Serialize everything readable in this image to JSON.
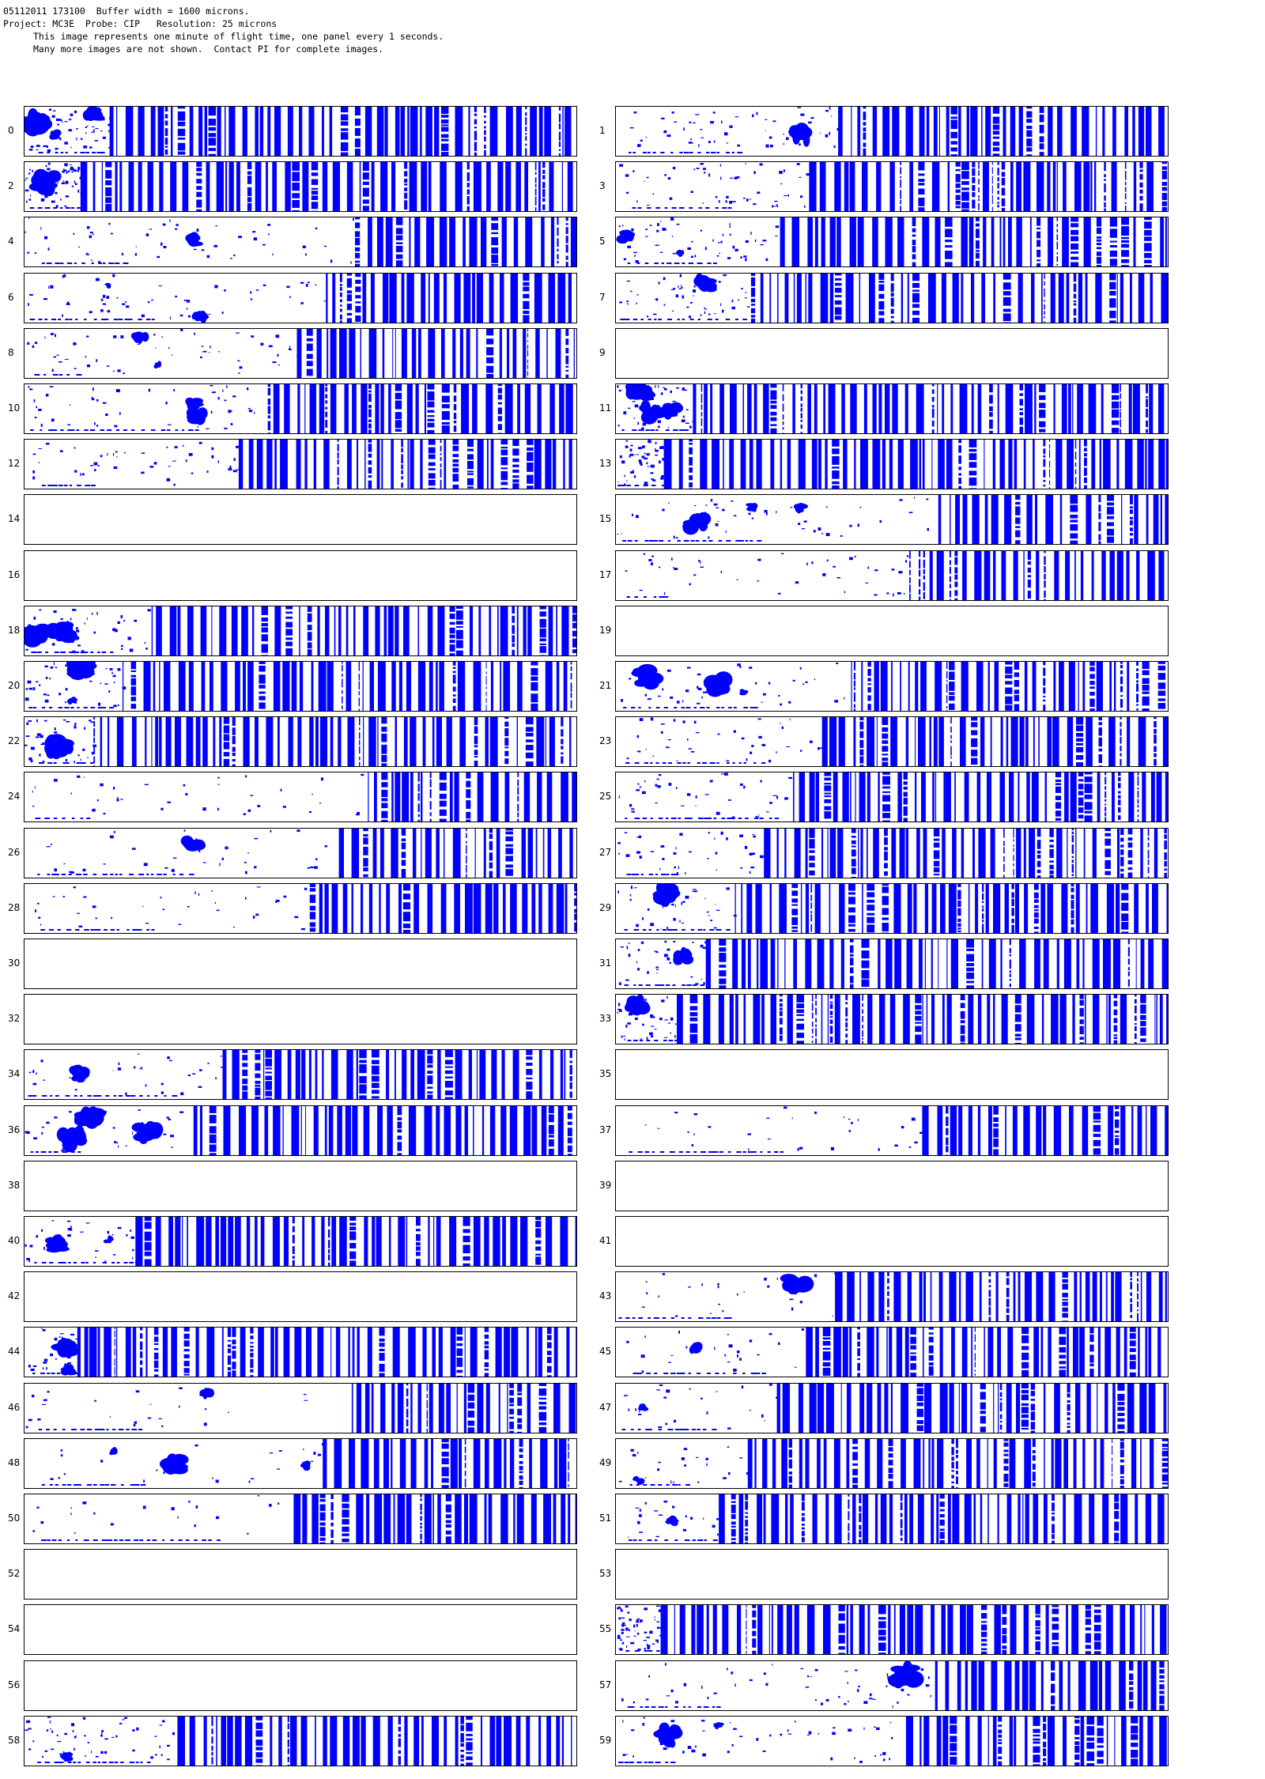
{
  "header": {
    "line1": "05112011 173100  Buffer width = 1600 microns.",
    "line2": "Project: MC3E  Probe: CIP   Resolution: 25 microns",
    "line3": "This image represents one minute of flight time, one panel every 1 seconds.",
    "line4": "Many more images are not shown.  Contact PI for complete images."
  },
  "colors": {
    "particle": "#0000ff",
    "border": "#000000",
    "background": "#ffffff"
  },
  "panels": [
    {
      "label": "0",
      "empty": false
    },
    {
      "label": "1",
      "empty": false
    },
    {
      "label": "2",
      "empty": false
    },
    {
      "label": "3",
      "empty": false
    },
    {
      "label": "4",
      "empty": false
    },
    {
      "label": "5",
      "empty": false
    },
    {
      "label": "6",
      "empty": false
    },
    {
      "label": "7",
      "empty": false
    },
    {
      "label": "8",
      "empty": false
    },
    {
      "label": "9",
      "empty": true
    },
    {
      "label": "10",
      "empty": false
    },
    {
      "label": "11",
      "empty": false
    },
    {
      "label": "12",
      "empty": false
    },
    {
      "label": "13",
      "empty": false
    },
    {
      "label": "14",
      "empty": true
    },
    {
      "label": "15",
      "empty": false
    },
    {
      "label": "16",
      "empty": true
    },
    {
      "label": "17",
      "empty": false
    },
    {
      "label": "18",
      "empty": false
    },
    {
      "label": "19",
      "empty": true
    },
    {
      "label": "20",
      "empty": false
    },
    {
      "label": "21",
      "empty": false
    },
    {
      "label": "22",
      "empty": false
    },
    {
      "label": "23",
      "empty": false
    },
    {
      "label": "24",
      "empty": false
    },
    {
      "label": "25",
      "empty": false
    },
    {
      "label": "26",
      "empty": false
    },
    {
      "label": "27",
      "empty": false
    },
    {
      "label": "28",
      "empty": false
    },
    {
      "label": "29",
      "empty": false
    },
    {
      "label": "30",
      "empty": true
    },
    {
      "label": "31",
      "empty": false
    },
    {
      "label": "32",
      "empty": true
    },
    {
      "label": "33",
      "empty": false
    },
    {
      "label": "34",
      "empty": false
    },
    {
      "label": "35",
      "empty": true
    },
    {
      "label": "36",
      "empty": false
    },
    {
      "label": "37",
      "empty": false
    },
    {
      "label": "38",
      "empty": true
    },
    {
      "label": "39",
      "empty": true
    },
    {
      "label": "40",
      "empty": false
    },
    {
      "label": "41",
      "empty": true
    },
    {
      "label": "42",
      "empty": true
    },
    {
      "label": "43",
      "empty": false
    },
    {
      "label": "44",
      "empty": false
    },
    {
      "label": "45",
      "empty": false
    },
    {
      "label": "46",
      "empty": false
    },
    {
      "label": "47",
      "empty": false
    },
    {
      "label": "48",
      "empty": false
    },
    {
      "label": "49",
      "empty": false
    },
    {
      "label": "50",
      "empty": false
    },
    {
      "label": "51",
      "empty": false
    },
    {
      "label": "52",
      "empty": true
    },
    {
      "label": "53",
      "empty": true
    },
    {
      "label": "54",
      "empty": true
    },
    {
      "label": "55",
      "empty": false
    },
    {
      "label": "56",
      "empty": true
    },
    {
      "label": "57",
      "empty": false
    },
    {
      "label": "58",
      "empty": false
    },
    {
      "label": "59",
      "empty": false
    }
  ]
}
